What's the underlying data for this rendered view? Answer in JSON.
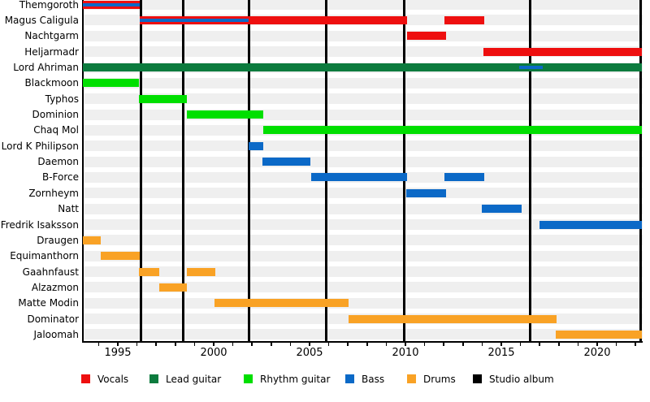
{
  "chart_data": {
    "type": "timeline-gantt",
    "description": "Band members timeline chart: colored horizontal bars per member role over years, black vertical lines mark studio albums",
    "x_axis": {
      "labeled_tick_years": [
        1995,
        2000,
        2005,
        2010,
        2015,
        2020
      ],
      "minor_ticks_every_year_from": 1994,
      "minor_ticks_every_year_to": 2022,
      "domain_start": 1993.16,
      "domain_end": 2022.35,
      "grid": "off",
      "row_guide_bands": "on"
    },
    "colors": {
      "vocals": "#ee0f0f",
      "lead_guitar": "#0c7b3e",
      "rhythm_guitar": "#00df00",
      "bass": "#0b69c7",
      "drums": "#f9a225",
      "studio_album": "#000000",
      "row_band": "#efefef",
      "axis": "#000000",
      "background": "#ffffff"
    },
    "legend": [
      {
        "id": "vocals",
        "label": "Vocals"
      },
      {
        "id": "lead_guitar",
        "label": "Lead guitar"
      },
      {
        "id": "rhythm_guitar",
        "label": "Rhythm guitar"
      },
      {
        "id": "bass",
        "label": "Bass"
      },
      {
        "id": "drums",
        "label": "Drums"
      },
      {
        "id": "studio_album",
        "label": "Studio album"
      }
    ],
    "legend_position": "bottom",
    "album_years": [
      1996.2,
      1998.4,
      2001.83,
      2005.87,
      2009.95,
      2016.5,
      2022.25
    ],
    "members": [
      {
        "name": "Themgoroth",
        "segments": [
          {
            "role": "vocals",
            "start": 1993.16,
            "end": 1996.15
          }
        ],
        "stripes": [
          {
            "role": "bass",
            "start": 1993.16,
            "end": 1996.15
          }
        ]
      },
      {
        "name": "Magus Caligula",
        "segments": [
          {
            "role": "vocals",
            "start": 1996.15,
            "end": 2010.1
          },
          {
            "role": "vocals",
            "start": 2012.05,
            "end": 2014.1
          }
        ],
        "stripes": [
          {
            "role": "bass",
            "start": 1996.15,
            "end": 2001.83
          }
        ]
      },
      {
        "name": "Nachtgarm",
        "segments": [
          {
            "role": "vocals",
            "start": 2010.1,
            "end": 2012.1
          }
        ],
        "stripes": []
      },
      {
        "name": "Heljarmadr",
        "segments": [
          {
            "role": "vocals",
            "start": 2014.05,
            "end": 2022.35
          }
        ],
        "stripes": []
      },
      {
        "name": "Lord Ahriman",
        "segments": [
          {
            "role": "lead_guitar",
            "start": 1993.16,
            "end": 2022.35
          }
        ],
        "stripes": [
          {
            "role": "bass",
            "start": 2015.95,
            "end": 2017.15
          }
        ]
      },
      {
        "name": "Blackmoon",
        "segments": [
          {
            "role": "rhythm_guitar",
            "start": 1993.16,
            "end": 1996.1
          }
        ],
        "stripes": []
      },
      {
        "name": "Typhos",
        "segments": [
          {
            "role": "rhythm_guitar",
            "start": 1996.1,
            "end": 1998.6
          }
        ],
        "stripes": []
      },
      {
        "name": "Dominion",
        "segments": [
          {
            "role": "rhythm_guitar",
            "start": 1998.6,
            "end": 2002.6
          }
        ],
        "stripes": []
      },
      {
        "name": "Chaq Mol",
        "segments": [
          {
            "role": "rhythm_guitar",
            "start": 2002.6,
            "end": 2022.35
          }
        ],
        "stripes": []
      },
      {
        "name": "Lord K Philipson",
        "segments": [
          {
            "role": "bass",
            "start": 2001.83,
            "end": 2002.6
          }
        ],
        "stripes": []
      },
      {
        "name": "Daemon",
        "segments": [
          {
            "role": "bass",
            "start": 2002.55,
            "end": 2005.05
          }
        ],
        "stripes": []
      },
      {
        "name": "B-Force",
        "segments": [
          {
            "role": "bass",
            "start": 2005.1,
            "end": 2010.1
          },
          {
            "role": "bass",
            "start": 2012.05,
            "end": 2014.1
          }
        ],
        "stripes": []
      },
      {
        "name": "Zornheym",
        "segments": [
          {
            "role": "bass",
            "start": 2010.05,
            "end": 2012.1
          }
        ],
        "stripes": []
      },
      {
        "name": "Natt",
        "segments": [
          {
            "role": "bass",
            "start": 2014.0,
            "end": 2016.05
          }
        ],
        "stripes": []
      },
      {
        "name": "Fredrik Isaksson",
        "segments": [
          {
            "role": "bass",
            "start": 2017.0,
            "end": 2022.35
          }
        ],
        "stripes": []
      },
      {
        "name": "Draugen",
        "segments": [
          {
            "role": "drums",
            "start": 1993.16,
            "end": 1994.1
          }
        ],
        "stripes": []
      },
      {
        "name": "Equimanthorn",
        "segments": [
          {
            "role": "drums",
            "start": 1994.1,
            "end": 1996.15
          }
        ],
        "stripes": []
      },
      {
        "name": "Gaahnfaust",
        "segments": [
          {
            "role": "drums",
            "start": 1996.1,
            "end": 1997.15
          },
          {
            "role": "drums",
            "start": 1998.6,
            "end": 2000.1
          }
        ],
        "stripes": []
      },
      {
        "name": "Alzazmon",
        "segments": [
          {
            "role": "drums",
            "start": 1997.15,
            "end": 1998.6
          }
        ],
        "stripes": []
      },
      {
        "name": "Matte Modin",
        "segments": [
          {
            "role": "drums",
            "start": 2000.05,
            "end": 2007.05
          }
        ],
        "stripes": []
      },
      {
        "name": "Dominator",
        "segments": [
          {
            "role": "drums",
            "start": 2007.05,
            "end": 2017.9
          }
        ],
        "stripes": []
      },
      {
        "name": "Jaloomah",
        "segments": [
          {
            "role": "drums",
            "start": 2017.85,
            "end": 2022.35
          }
        ],
        "stripes": []
      }
    ]
  }
}
